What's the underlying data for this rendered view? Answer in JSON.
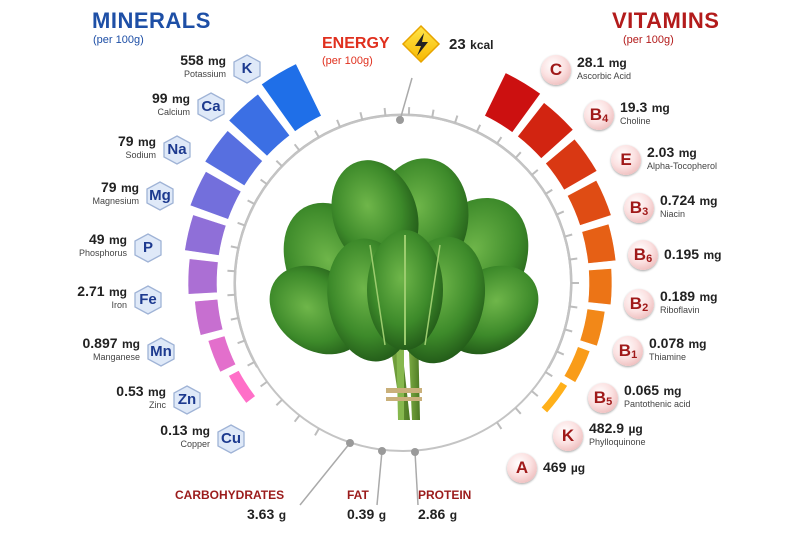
{
  "minerals": {
    "title": "MINERALS",
    "per": "(per 100g)",
    "items": [
      {
        "symbol": "K",
        "value": "558",
        "unit": "mg",
        "name": "Potassium"
      },
      {
        "symbol": "Ca",
        "value": "99",
        "unit": "mg",
        "name": "Calcium"
      },
      {
        "symbol": "Na",
        "value": "79",
        "unit": "mg",
        "name": "Sodium"
      },
      {
        "symbol": "Mg",
        "value": "79",
        "unit": "mg",
        "name": "Magnesium"
      },
      {
        "symbol": "P",
        "value": "49",
        "unit": "mg",
        "name": "Phosphorus"
      },
      {
        "symbol": "Fe",
        "value": "2.71",
        "unit": "mg",
        "name": "Iron"
      },
      {
        "symbol": "Mn",
        "value": "0.897",
        "unit": "mg",
        "name": "Manganese"
      },
      {
        "symbol": "Zn",
        "value": "0.53",
        "unit": "mg",
        "name": "Zinc"
      },
      {
        "symbol": "Cu",
        "value": "0.13",
        "unit": "mg",
        "name": "Copper"
      }
    ]
  },
  "energy": {
    "title": "ENERGY",
    "per": "(per 100g)",
    "value": "23",
    "unit": "kcal"
  },
  "vitamins": {
    "title": "VITAMINS",
    "per": "(per 100g)",
    "items": [
      {
        "letter": "C",
        "subscript": "",
        "value": "28.1",
        "unit": "mg",
        "name": "Ascorbic Acid"
      },
      {
        "letter": "B",
        "subscript": "4",
        "value": "19.3",
        "unit": "mg",
        "name": "Choline"
      },
      {
        "letter": "E",
        "subscript": "",
        "value": "2.03",
        "unit": "mg",
        "name": "Alpha-Tocopherol"
      },
      {
        "letter": "B",
        "subscript": "3",
        "value": "0.724",
        "unit": "mg",
        "name": "Niacin"
      },
      {
        "letter": "B",
        "subscript": "6",
        "value": "0.195",
        "unit": "mg",
        "name": ""
      },
      {
        "letter": "B",
        "subscript": "2",
        "value": "0.189",
        "unit": "mg",
        "name": "Riboflavin"
      },
      {
        "letter": "B",
        "subscript": "1",
        "value": "0.078",
        "unit": "mg",
        "name": "Thiamine"
      },
      {
        "letter": "B",
        "subscript": "5",
        "value": "0.065",
        "unit": "mg",
        "name": "Pantothenic acid"
      },
      {
        "letter": "K",
        "subscript": "",
        "value": "482.9",
        "unit": "µg",
        "name": "Phylloquinone"
      },
      {
        "letter": "A",
        "subscript": "",
        "value": "469",
        "unit": "µg",
        "name": ""
      }
    ]
  },
  "macros": [
    {
      "label": "CARBOHYDRATES",
      "value": "3.63",
      "unit": "g"
    },
    {
      "label": "FAT",
      "value": "0.39",
      "unit": "g"
    },
    {
      "label": "PROTEIN",
      "value": "2.86",
      "unit": "g"
    }
  ],
  "colors": {
    "minerals_title": "#1e4fa6",
    "vitamins_title": "#b31b1b",
    "energy_title": "#e0301e",
    "mineral_bar_start": "#1f6fe8",
    "mineral_bar_end": "#ff6fc8",
    "vitamin_bar_start": "#cc1010",
    "vitamin_bar_end": "#ffb01a",
    "leaf": "#3d8a2a"
  },
  "icons": {
    "energy": "lightning-bolt-icon",
    "center": "spinach-bunch-image"
  }
}
